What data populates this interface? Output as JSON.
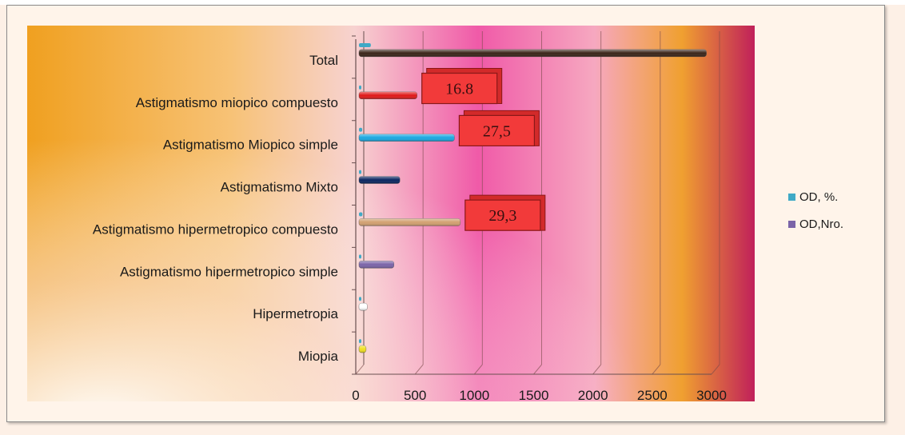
{
  "chart_data": {
    "type": "bar",
    "orientation": "horizontal",
    "title": "",
    "xlabel": "",
    "ylabel": "",
    "xlim": [
      0,
      3000
    ],
    "grid": true,
    "legend_position": "right",
    "categories": [
      "Total",
      "Astigmatismo miopico compuesto",
      "Astigmatismo Miopico simple ",
      "Astigmatismo Mixto",
      "Astigmatismo hipermetropico compuesto",
      "Astigmatismo hipermetropico simple",
      "Hipermetropia",
      "Miopia"
    ],
    "x_ticks": [
      "0",
      "500",
      "1000",
      "1500",
      "2000",
      "2500",
      "3000"
    ],
    "series": [
      {
        "name": "OD, %.",
        "values": [
          100,
          16.8,
          27.5,
          8.5,
          29.3,
          11.5,
          4.5,
          2.3
        ],
        "color": "#3fa9c6"
      },
      {
        "name": "OD,Nro.",
        "values": [
          2930,
          490,
          805,
          345,
          855,
          295,
          70,
          60
        ],
        "color": "#7b64a8",
        "bar_colors": [
          "#3a2418",
          "#e01818",
          "#1aa7e0",
          "#0a2560",
          "#d2a070",
          "#7b64a8",
          "#ffffff",
          "#f0e020"
        ]
      }
    ],
    "callouts": [
      {
        "text": "16.8",
        "category": "Astigmatismo miopico compuesto"
      },
      {
        "text": "27,5",
        "category": "Astigmatismo Miopico simple "
      },
      {
        "text": "29,3",
        "category": "Astigmatismo hipermetropico compuesto"
      }
    ],
    "colors": {
      "callout_fill": "#f23a3a",
      "callout_border": "#8a1818"
    }
  }
}
